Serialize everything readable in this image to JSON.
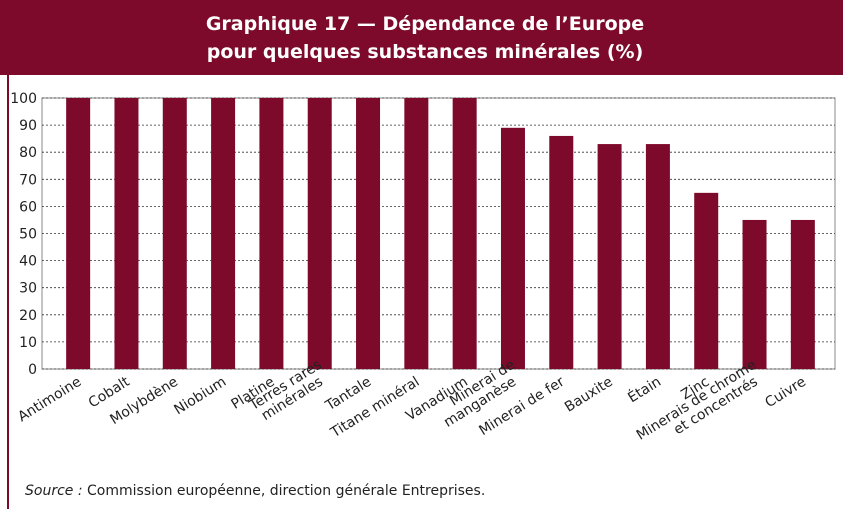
{
  "chart_data": {
    "type": "bar",
    "title": [
      "Graphique 17 — Dépendance de l’Europe",
      "pour quelques substances minérales (%)"
    ],
    "categories": [
      "Antimoine",
      "Cobalt",
      "Molybdène",
      "Niobium",
      "Platine",
      "Terres rares\nminérales",
      "Tantale",
      "Titane minéral",
      "Vanadium",
      "Minerai de\nmanganèse",
      "Minerai de fer",
      "Bauxite",
      "Étain",
      "Zinc",
      "Minerais de chrome\net concentrés",
      "Cuivre"
    ],
    "values": [
      100,
      100,
      100,
      100,
      100,
      100,
      100,
      100,
      100,
      89,
      86,
      83,
      83,
      65,
      55,
      55
    ],
    "color": "#7d0a2a",
    "ylim": [
      0,
      100
    ],
    "yticks": [
      0,
      10,
      20,
      30,
      40,
      50,
      60,
      70,
      80,
      90,
      100
    ],
    "grid": true,
    "source_label": "Source :",
    "source": "Commission européenne, direction générale Entreprises."
  }
}
